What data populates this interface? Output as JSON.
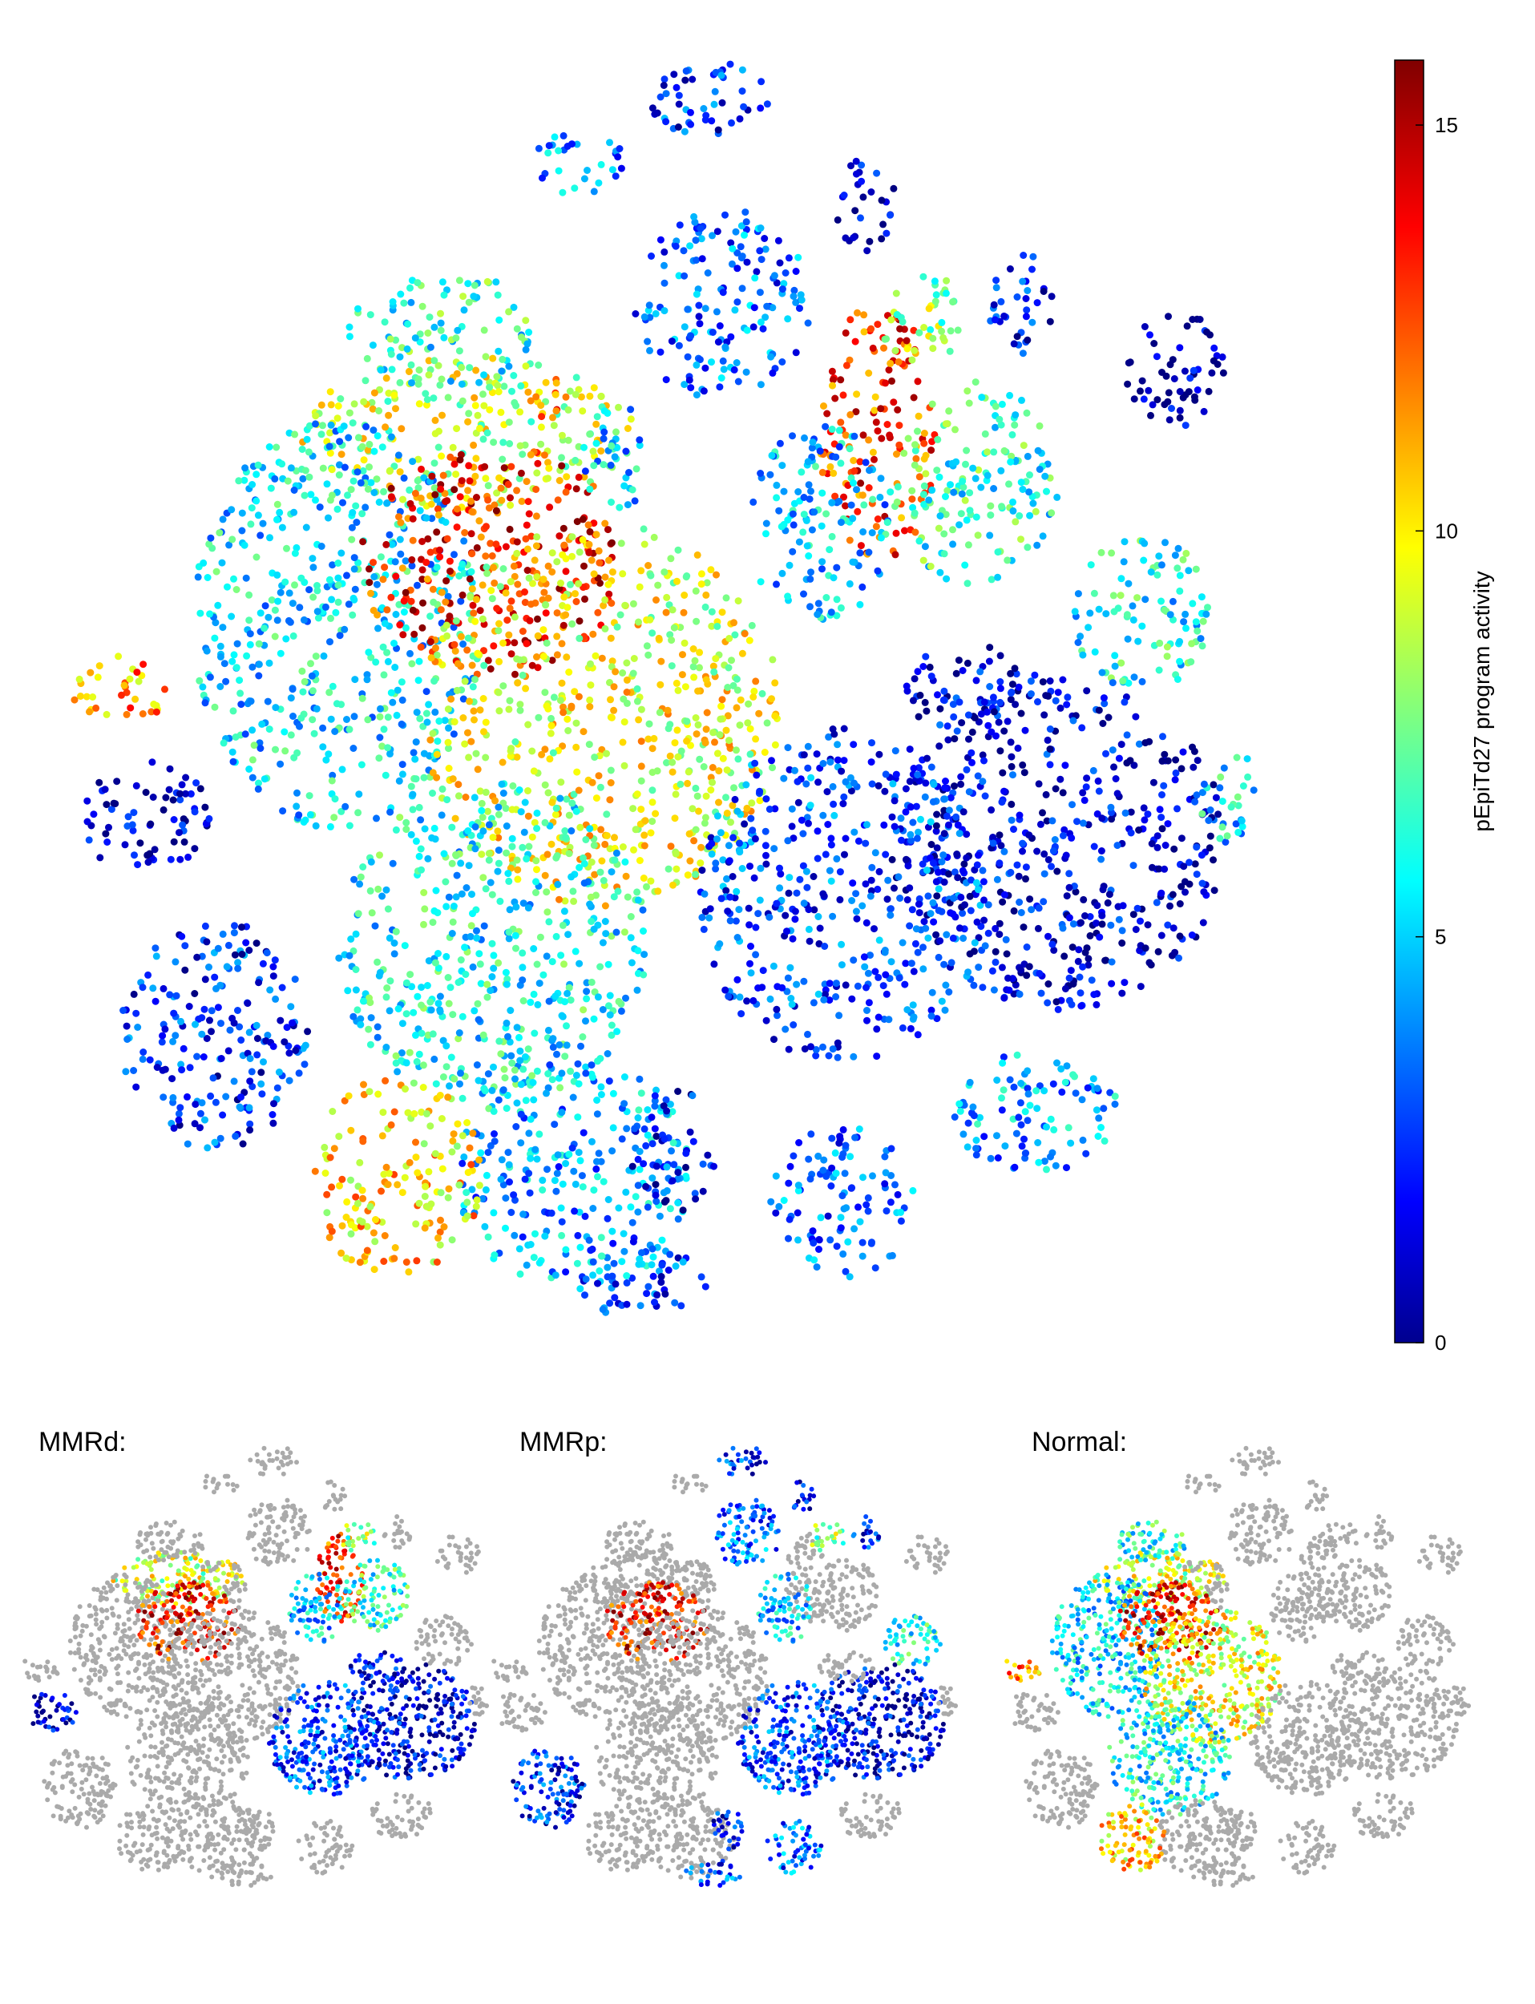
{
  "chart_data": [
    {
      "type": "scatter",
      "title": "",
      "colorbar": {
        "label": "pEpiTd27 program activity",
        "range": [
          0,
          15.8
        ],
        "ticks": [
          0,
          5,
          10,
          15
        ],
        "colormap": "jet"
      },
      "clusters": [
        {
          "id": "c01",
          "cx": 0.52,
          "cy": 0.2,
          "rx": 0.075,
          "ry": 0.075,
          "value": 3.5
        },
        {
          "id": "c02",
          "cx": 0.31,
          "cy": 0.3,
          "rx": 0.14,
          "ry": 0.06,
          "value": 9.0
        },
        {
          "id": "c03",
          "cx": 0.29,
          "cy": 0.22,
          "rx": 0.08,
          "ry": 0.045,
          "value": 6.5
        },
        {
          "id": "c04",
          "cx": 0.2,
          "cy": 0.45,
          "rx": 0.12,
          "ry": 0.16,
          "value": 5.5
        },
        {
          "id": "c05",
          "cx": 0.33,
          "cy": 0.4,
          "rx": 0.11,
          "ry": 0.09,
          "value": 13.5
        },
        {
          "id": "c06",
          "cx": 0.42,
          "cy": 0.52,
          "rx": 0.15,
          "ry": 0.15,
          "value": 9.5
        },
        {
          "id": "c07",
          "cx": 0.33,
          "cy": 0.7,
          "rx": 0.13,
          "ry": 0.13,
          "value": 6.0
        },
        {
          "id": "c08",
          "cx": 0.4,
          "cy": 0.88,
          "rx": 0.1,
          "ry": 0.09,
          "value": 4.5
        },
        {
          "id": "c09",
          "cx": 0.25,
          "cy": 0.88,
          "rx": 0.07,
          "ry": 0.08,
          "value": 10.5
        },
        {
          "id": "c10",
          "cx": 0.1,
          "cy": 0.77,
          "rx": 0.08,
          "ry": 0.09,
          "value": 2.5
        },
        {
          "id": "c11",
          "cx": 0.04,
          "cy": 0.6,
          "rx": 0.055,
          "ry": 0.045,
          "value": 1.0
        },
        {
          "id": "c12",
          "cx": 0.02,
          "cy": 0.5,
          "rx": 0.04,
          "ry": 0.03,
          "value": 11.5
        },
        {
          "id": "c13",
          "cx": 0.8,
          "cy": 0.62,
          "rx": 0.14,
          "ry": 0.13,
          "value": 1.5
        },
        {
          "id": "c14",
          "cx": 0.62,
          "cy": 0.66,
          "rx": 0.12,
          "ry": 0.13,
          "value": 3.0
        },
        {
          "id": "c15",
          "cx": 0.65,
          "cy": 0.3,
          "rx": 0.05,
          "ry": 0.1,
          "value": 13.0
        },
        {
          "id": "c16",
          "cx": 0.73,
          "cy": 0.34,
          "rx": 0.07,
          "ry": 0.08,
          "value": 6.5
        },
        {
          "id": "c17",
          "cx": 0.6,
          "cy": 0.37,
          "rx": 0.06,
          "ry": 0.08,
          "value": 5.0
        },
        {
          "id": "c18",
          "cx": 0.87,
          "cy": 0.44,
          "rx": 0.06,
          "ry": 0.06,
          "value": 6.0
        },
        {
          "id": "c19",
          "cx": 0.9,
          "cy": 0.25,
          "rx": 0.045,
          "ry": 0.045,
          "value": 0.5
        },
        {
          "id": "c20",
          "cx": 0.77,
          "cy": 0.2,
          "rx": 0.03,
          "ry": 0.04,
          "value": 2.0
        },
        {
          "id": "c21",
          "cx": 0.69,
          "cy": 0.21,
          "rx": 0.04,
          "ry": 0.035,
          "value": 8.0
        },
        {
          "id": "c22",
          "cx": 0.51,
          "cy": 0.04,
          "rx": 0.05,
          "ry": 0.035,
          "value": 2.5
        },
        {
          "id": "c23",
          "cx": 0.4,
          "cy": 0.09,
          "rx": 0.04,
          "ry": 0.025,
          "value": 4.0
        },
        {
          "id": "c24",
          "cx": 0.64,
          "cy": 0.12,
          "rx": 0.025,
          "ry": 0.04,
          "value": 1.8
        },
        {
          "id": "c25",
          "cx": 0.78,
          "cy": 0.83,
          "rx": 0.07,
          "ry": 0.05,
          "value": 4.5
        },
        {
          "id": "c26",
          "cx": 0.62,
          "cy": 0.9,
          "rx": 0.06,
          "ry": 0.06,
          "value": 3.5
        },
        {
          "id": "c27",
          "cx": 0.45,
          "cy": 0.96,
          "rx": 0.06,
          "ry": 0.03,
          "value": 3.0
        },
        {
          "id": "c28",
          "cx": 0.48,
          "cy": 0.86,
          "rx": 0.035,
          "ry": 0.05,
          "value": 2.0
        },
        {
          "id": "c29",
          "cx": 0.94,
          "cy": 0.58,
          "rx": 0.025,
          "ry": 0.04,
          "value": 5.5
        },
        {
          "id": "c30",
          "cx": 0.43,
          "cy": 0.32,
          "rx": 0.025,
          "ry": 0.05,
          "value": 5.0
        },
        {
          "id": "c31",
          "cx": 0.38,
          "cy": 0.27,
          "rx": 0.02,
          "ry": 0.02,
          "value": 12.0
        },
        {
          "id": "c32",
          "cx": 0.73,
          "cy": 0.5,
          "rx": 0.06,
          "ry": 0.035,
          "value": 1.5
        }
      ]
    },
    {
      "type": "scatter",
      "title": "MMRd:",
      "active_clusters": [
        "c02",
        "c05",
        "c13",
        "c14",
        "c15",
        "c16",
        "c17",
        "c32",
        "c11",
        "c21"
      ]
    },
    {
      "type": "scatter",
      "title": "MMRp:",
      "active_clusters": [
        "c01",
        "c05",
        "c13",
        "c14",
        "c17",
        "c18",
        "c21",
        "c22",
        "c24",
        "c20",
        "c26",
        "c27",
        "c28",
        "c10"
      ]
    },
    {
      "type": "scatter",
      "title": "Normal:",
      "active_clusters": [
        "c02",
        "c03",
        "c04",
        "c05",
        "c06",
        "c07",
        "c09",
        "c12"
      ]
    }
  ]
}
